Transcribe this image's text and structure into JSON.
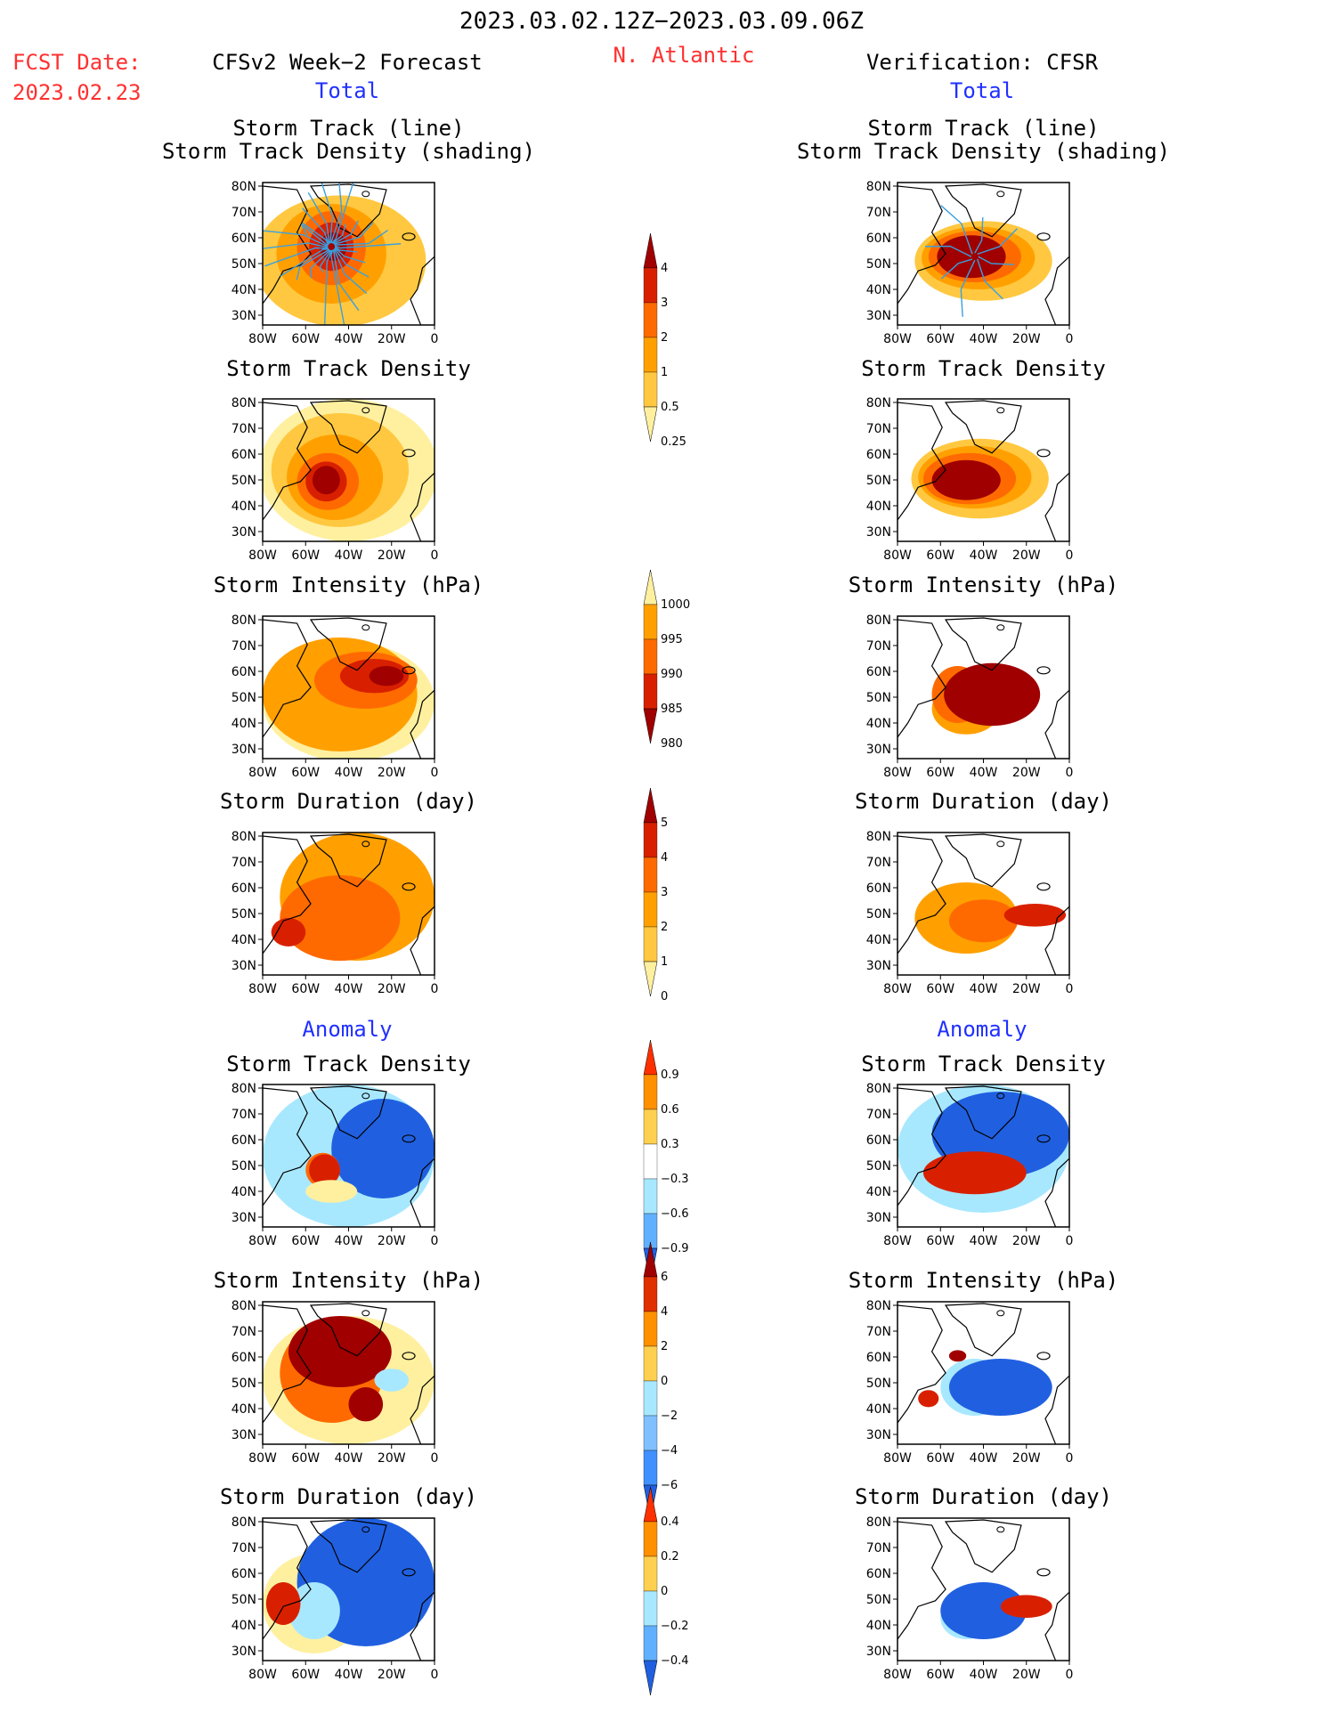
{
  "header": {
    "period": "2023.03.02.12Z−2023.03.09.06Z",
    "region": "N. Atlantic",
    "fcst_label": "FCST Date:",
    "fcst_date": "2023.02.23",
    "left_title": "CFSv2 Week−2 Forecast",
    "right_title": "Verification: CFSR",
    "total_label": "Total",
    "anomaly_label": "Anomaly"
  },
  "axes": {
    "lat_labels": [
      "80N",
      "70N",
      "60N",
      "50N",
      "40N",
      "30N"
    ],
    "lon_labels": [
      "80W",
      "60W",
      "40W",
      "20W",
      "0"
    ]
  },
  "rows": [
    {
      "key": "track",
      "title1": "Storm Track (line)",
      "title2": "Storm Track Density (shading)"
    },
    {
      "key": "density",
      "title1": "Storm Track Density",
      "title2": ""
    },
    {
      "key": "intensity",
      "title1": "Storm Intensity (hPa)",
      "title2": ""
    },
    {
      "key": "duration",
      "title1": "Storm Duration (day)",
      "title2": ""
    },
    {
      "key": "a_density",
      "title1": "Storm Track Density",
      "title2": ""
    },
    {
      "key": "a_intensity",
      "title1": "Storm Intensity (hPa)",
      "title2": ""
    },
    {
      "key": "a_duration",
      "title1": "Storm Duration (day)",
      "title2": ""
    }
  ],
  "colorbars": [
    {
      "key": "density",
      "labels": [
        "4",
        "3",
        "2",
        "1",
        "0.5",
        "0.25"
      ],
      "colors": [
        "#a00000",
        "#d82000",
        "#ff6a00",
        "#ffa000",
        "#ffc840",
        "#fff0a0"
      ]
    },
    {
      "key": "intensity",
      "labels": [
        "1000",
        "995",
        "990",
        "985",
        "980"
      ],
      "colors": [
        "#fff0a0",
        "#ffa000",
        "#ff6a00",
        "#d82000",
        "#a00000"
      ]
    },
    {
      "key": "duration",
      "labels": [
        "5",
        "4",
        "3",
        "2",
        "1",
        "0"
      ],
      "colors": [
        "#a00000",
        "#d82000",
        "#ff6a00",
        "#ffa000",
        "#ffc840",
        "#fff0a0"
      ]
    },
    {
      "key": "a_density",
      "labels": [
        "0.9",
        "0.6",
        "0.3",
        "−0.3",
        "−0.6",
        "−0.9"
      ],
      "colors": [
        "#ff3000",
        "#ff9000",
        "#ffd050",
        "#ffffff",
        "#a8e8ff",
        "#60b0ff",
        "#2060e0"
      ]
    },
    {
      "key": "a_intensity",
      "labels": [
        "6",
        "4",
        "2",
        "0",
        "−2",
        "−4",
        "−6"
      ],
      "colors": [
        "#a00000",
        "#e03000",
        "#ff9000",
        "#ffd050",
        "#a8e8ff",
        "#80c0ff",
        "#4090ff",
        "#2060e0"
      ]
    },
    {
      "key": "a_duration",
      "labels": [
        "0.4",
        "0.2",
        "0",
        "−0.2",
        "−0.4"
      ],
      "colors": [
        "#ff3000",
        "#ff9000",
        "#ffd050",
        "#a8e8ff",
        "#60b0ff",
        "#2060e0"
      ]
    }
  ],
  "colors": {
    "dark_red": "#a00000",
    "red": "#d82000",
    "orange": "#ff6a00",
    "amber": "#ffa000",
    "light_orange": "#ffc840",
    "pale_yellow": "#fff0a0",
    "blue": "#2060e0",
    "light_blue": "#a8e8ff",
    "track_line": "#3aa0e0"
  }
}
